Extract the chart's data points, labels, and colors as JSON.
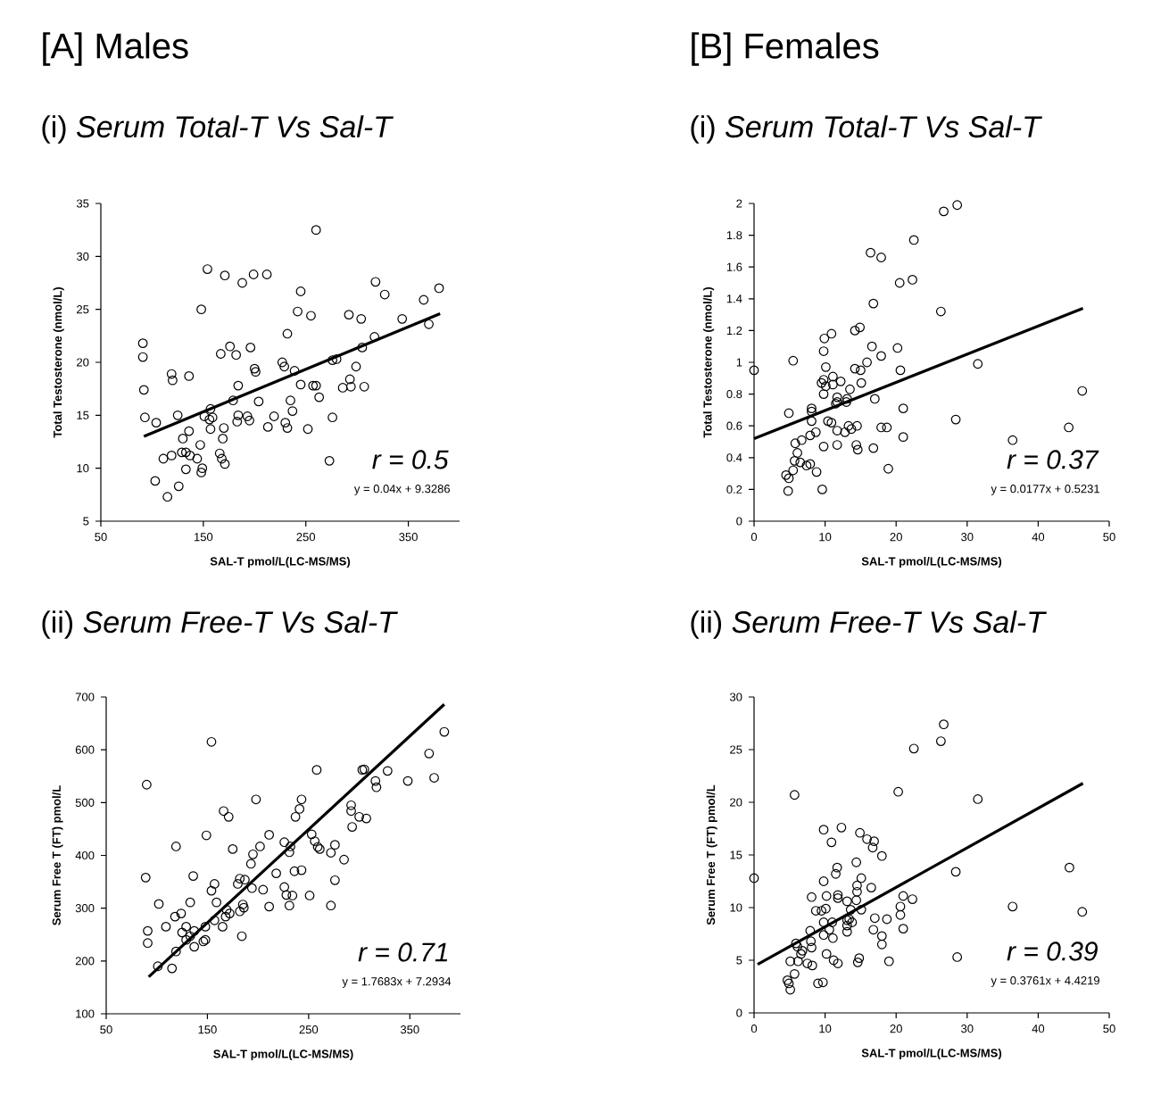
{
  "chart_data": [
    {
      "type": "scatter",
      "title": "[A] Males",
      "subtitle": "(i) *Serum Total-T Vs Sal-T*",
      "xlabel": "SAL-T pmol/L(LC-MS/MS)",
      "ylabel": "Total Testosterone (nmol/L)",
      "xlim": [
        50,
        400
      ],
      "xticks": [
        50,
        150,
        250,
        350
      ],
      "ylim": [
        5,
        35
      ],
      "yticks": [
        5,
        10,
        15,
        20,
        25,
        30,
        35
      ],
      "annotations": [
        "r = 0.5",
        "y = 0.04x + 9.3286"
      ],
      "series": [
        {
          "marker": "circle",
          "color": "#000000",
          "x": [
            91,
            91,
            92,
            93,
            104,
            103,
            111,
            115,
            119,
            119,
            120,
            125,
            126,
            129,
            130,
            133,
            133,
            136,
            136,
            137,
            144,
            149,
            148,
            148,
            147,
            151,
            154,
            156,
            157,
            157,
            159,
            166,
            167,
            168,
            169,
            171,
            170,
            171,
            176,
            179,
            182,
            183,
            184,
            184,
            188,
            193,
            195,
            196,
            199,
            200,
            201,
            204,
            212,
            213,
            219,
            227,
            229,
            230,
            232,
            232,
            235,
            237,
            239,
            242,
            245,
            245,
            252,
            255,
            257,
            260,
            260,
            263,
            273,
            276,
            276,
            280,
            286,
            292,
            293,
            294,
            299,
            305,
            304,
            307,
            317,
            318,
            327,
            344,
            365,
            370,
            380
          ],
          "values": [
            21.8,
            20.5,
            17.4,
            14.8,
            14.3,
            8.8,
            10.9,
            7.3,
            11.2,
            18.9,
            18.3,
            15.0,
            8.3,
            11.5,
            12.8,
            11.5,
            9.9,
            18.7,
            13.5,
            11.2,
            10.9,
            10.0,
            9.6,
            25.0,
            12.2,
            14.9,
            28.8,
            14.6,
            15.6,
            13.7,
            14.8,
            11.4,
            20.8,
            10.9,
            12.8,
            28.2,
            13.8,
            10.4,
            21.5,
            16.4,
            20.7,
            14.4,
            15.0,
            17.8,
            27.5,
            14.9,
            14.5,
            21.4,
            28.3,
            19.4,
            19.1,
            16.3,
            28.3,
            13.9,
            14.9,
            20.0,
            19.6,
            14.3,
            13.8,
            22.7,
            16.4,
            15.4,
            19.2,
            24.8,
            26.7,
            17.9,
            13.7,
            24.4,
            17.8,
            32.5,
            17.8,
            16.7,
            10.7,
            14.8,
            20.2,
            20.3,
            17.6,
            24.5,
            18.4,
            17.7,
            19.6,
            21.4,
            24.1,
            17.7,
            22.4,
            27.6,
            26.4,
            24.1,
            25.9,
            23.6,
            27.0
          ]
        },
        {
          "type": "line",
          "marker": "none",
          "color": "#000000",
          "x": [
            92,
            381
          ],
          "values": [
            13.0,
            24.6
          ]
        }
      ]
    },
    {
      "type": "scatter",
      "title": "[B] Females",
      "subtitle": "(i) *Serum Total-T Vs Sal-T*",
      "xlabel": "SAL-T pmol/L(LC-MS/MS)",
      "ylabel": "Total Testosterone (nmol/L)",
      "xlim": [
        0,
        50
      ],
      "xticks": [
        0,
        10,
        20,
        30,
        40,
        50
      ],
      "ylim": [
        0,
        2
      ],
      "yticks": [
        0,
        0.2,
        0.4,
        0.6,
        0.8,
        1,
        1.2,
        1.4,
        1.6,
        1.8,
        2
      ],
      "annotations": [
        "r = 0.37",
        "y = 0.0177x + 0.5231"
      ],
      "series": [
        {
          "marker": "circle",
          "color": "#000000",
          "x": [
            0.0,
            5.5,
            4.9,
            4.5,
            4.9,
            4.8,
            5.5,
            5.7,
            6.1,
            5.8,
            6.7,
            6.5,
            7.4,
            7.9,
            8.8,
            9.6,
            7.9,
            8.7,
            8.1,
            8.1,
            8.1,
            9.8,
            9.5,
            9.8,
            10.1,
            9.8,
            9.8,
            9.9,
            10.1,
            10.9,
            11.1,
            11.1,
            12.2,
            10.4,
            10.9,
            11.7,
            11.7,
            11.5,
            11.7,
            11.7,
            12.8,
            13.0,
            13.1,
            13.5,
            13.3,
            13.7,
            14.5,
            14.4,
            14.6,
            14.2,
            15.0,
            15.1,
            14.2,
            14.9,
            15.9,
            16.6,
            16.8,
            16.4,
            17.9,
            17.9,
            17.0,
            16.8,
            17.9,
            18.7,
            18.9,
            20.2,
            20.5,
            22.3,
            22.5,
            20.6,
            21.0,
            21.0,
            26.3,
            26.7,
            28.6,
            28.4,
            31.5,
            36.4,
            44.3,
            46.2
          ],
          "values": [
            0.95,
            1.01,
            0.68,
            0.29,
            0.27,
            0.19,
            0.32,
            0.38,
            0.43,
            0.49,
            0.51,
            0.37,
            0.35,
            0.36,
            0.31,
            0.2,
            0.54,
            0.56,
            0.63,
            0.71,
            0.69,
            0.47,
            0.87,
            0.89,
            0.85,
            0.8,
            1.07,
            1.15,
            0.97,
            1.18,
            0.91,
            0.86,
            0.88,
            0.63,
            0.62,
            0.78,
            0.75,
            0.74,
            0.57,
            0.48,
            0.56,
            0.75,
            0.77,
            0.83,
            0.6,
            0.58,
            0.6,
            0.48,
            0.45,
            0.96,
            0.95,
            0.87,
            1.2,
            1.22,
            1.0,
            1.1,
            1.37,
            1.69,
            1.66,
            1.04,
            0.77,
            0.46,
            0.59,
            0.59,
            0.33,
            1.09,
            1.5,
            1.52,
            1.77,
            0.95,
            0.71,
            0.53,
            1.32,
            1.95,
            1.99,
            0.64,
            0.99,
            0.51,
            0.59,
            0.82
          ]
        },
        {
          "type": "line",
          "marker": "none",
          "color": "#000000",
          "x": [
            0,
            46.3
          ],
          "values": [
            0.52,
            1.34
          ]
        }
      ]
    },
    {
      "type": "scatter",
      "subtitle": "(ii) *Serum Free-T Vs Sal-T*",
      "xlabel": "SAL-T pmol/L(LC-MS/MS)",
      "ylabel": "Serum Free T (FT) pmol/L",
      "xlim": [
        50,
        400
      ],
      "xticks": [
        50,
        150,
        250,
        350
      ],
      "ylim": [
        100,
        700
      ],
      "yticks": [
        100,
        200,
        300,
        400,
        500,
        600,
        700
      ],
      "annotations": [
        "r = 0.71",
        "y = 1.7683x + 7.2934"
      ],
      "series": [
        {
          "marker": "circle",
          "color": "#000000",
          "x": [
            90,
            89,
            91,
            91,
            102,
            101,
            115,
            109,
            118,
            124,
            119,
            129,
            125,
            129,
            133,
            137,
            133,
            136,
            137,
            119,
            146,
            148,
            148,
            149,
            154,
            157,
            157,
            154,
            159,
            165,
            166,
            171,
            168,
            169,
            172,
            175,
            180,
            182,
            187,
            182,
            185,
            186,
            184,
            194,
            193,
            195,
            198,
            202,
            205,
            211,
            211,
            218,
            226,
            226,
            228,
            232,
            231,
            231,
            234,
            236,
            237,
            243,
            241,
            243,
            251,
            253,
            256,
            258,
            259,
            261,
            272,
            272,
            276,
            276,
            285,
            292,
            292,
            293,
            300,
            307,
            303,
            305,
            316,
            317,
            328,
            348,
            369,
            374,
            384
          ],
          "values": [
            534,
            358,
            257,
            234,
            308,
            190,
            186,
            265,
            284,
            290,
            417,
            265,
            254,
            240,
            247,
            257,
            311,
            361,
            227,
            218,
            237,
            240,
            265,
            438,
            615,
            277,
            346,
            333,
            311,
            265,
            484,
            473,
            284,
            297,
            290,
            412,
            346,
            356,
            354,
            294,
            307,
            301,
            247,
            338,
            384,
            402,
            506,
            417,
            335,
            439,
            303,
            366,
            425,
            340,
            325,
            417,
            406,
            305,
            324,
            370,
            473,
            372,
            488,
            506,
            324,
            440,
            427,
            562,
            416,
            412,
            405,
            305,
            353,
            420,
            392,
            484,
            495,
            454,
            473,
            470,
            562,
            563,
            541,
            529,
            560,
            541,
            593,
            547,
            634
          ]
        },
        {
          "type": "line",
          "marker": "none",
          "color": "#000000",
          "x": [
            92,
            384
          ],
          "values": [
            170,
            686
          ]
        }
      ]
    },
    {
      "type": "scatter",
      "subtitle": "(ii) *Serum Free-T Vs Sal-T*",
      "xlabel": "SAL-T pmol/L(LC-MS/MS)",
      "ylabel": "Serum Free T (FT) pmol/L",
      "xlim": [
        0,
        50
      ],
      "xticks": [
        0,
        10,
        20,
        30,
        40,
        50
      ],
      "ylim": [
        0,
        30
      ],
      "yticks": [
        0,
        5,
        10,
        15,
        20,
        25,
        30
      ],
      "annotations": [
        "r = 0.39",
        "y = 0.3761x + 4.4219"
      ],
      "series": [
        {
          "marker": "circle",
          "color": "#000000",
          "x": [
            0,
            5.7,
            4.7,
            4.9,
            5.1,
            5.7,
            5.1,
            6.2,
            6.6,
            6.8,
            6.1,
            5.9,
            7.5,
            8.2,
            8.1,
            8.0,
            7.9,
            8.1,
            8.7,
            9.5,
            9.0,
            9.7,
            9.8,
            9.8,
            10.1,
            10.2,
            9.8,
            9.8,
            10.9,
            12.3,
            11.0,
            10.6,
            11.1,
            10.2,
            11.2,
            11.8,
            11.5,
            11.7,
            11.8,
            11.8,
            13.1,
            13.6,
            13.1,
            13.4,
            13.8,
            13.1,
            13.1,
            14.4,
            14.5,
            14.5,
            14.4,
            15.1,
            15.1,
            14.9,
            15.9,
            16.9,
            16.7,
            16.5,
            18.0,
            17.0,
            16.8,
            18.0,
            18.0,
            14.6,
            14.8,
            18.7,
            19.0,
            20.3,
            20.6,
            20.6,
            21.0,
            21.0,
            22.3,
            22.5,
            26.3,
            26.7,
            28.4,
            28.6,
            31.5,
            36.4,
            44.4,
            46.2
          ],
          "values": [
            12.8,
            20.7,
            3.1,
            2.8,
            2.2,
            3.7,
            4.9,
            4.9,
            5.6,
            5.9,
            6.3,
            6.6,
            4.7,
            4.5,
            6.2,
            6.8,
            7.8,
            11.0,
            9.7,
            9.7,
            2.8,
            2.9,
            7.4,
            8.6,
            9.9,
            11.1,
            12.5,
            17.4,
            16.2,
            17.6,
            8.6,
            7.9,
            7.1,
            5.6,
            5.0,
            4.7,
            13.2,
            13.8,
            11.2,
            10.9,
            10.6,
            9.8,
            8.8,
            8.9,
            8.6,
            8.3,
            7.7,
            10.7,
            11.5,
            12.1,
            14.3,
            12.8,
            9.8,
            17.1,
            16.5,
            16.3,
            15.7,
            11.9,
            14.9,
            9.0,
            7.9,
            7.3,
            6.5,
            4.8,
            5.2,
            8.9,
            4.9,
            21.0,
            10.1,
            9.3,
            11.1,
            8.0,
            10.8,
            25.1,
            25.8,
            27.4,
            13.4,
            5.3,
            20.3,
            10.1,
            13.8,
            9.6
          ]
        },
        {
          "type": "line",
          "marker": "none",
          "color": "#000000",
          "x": [
            0.5,
            46.3
          ],
          "values": [
            4.6,
            21.8
          ]
        }
      ]
    }
  ]
}
